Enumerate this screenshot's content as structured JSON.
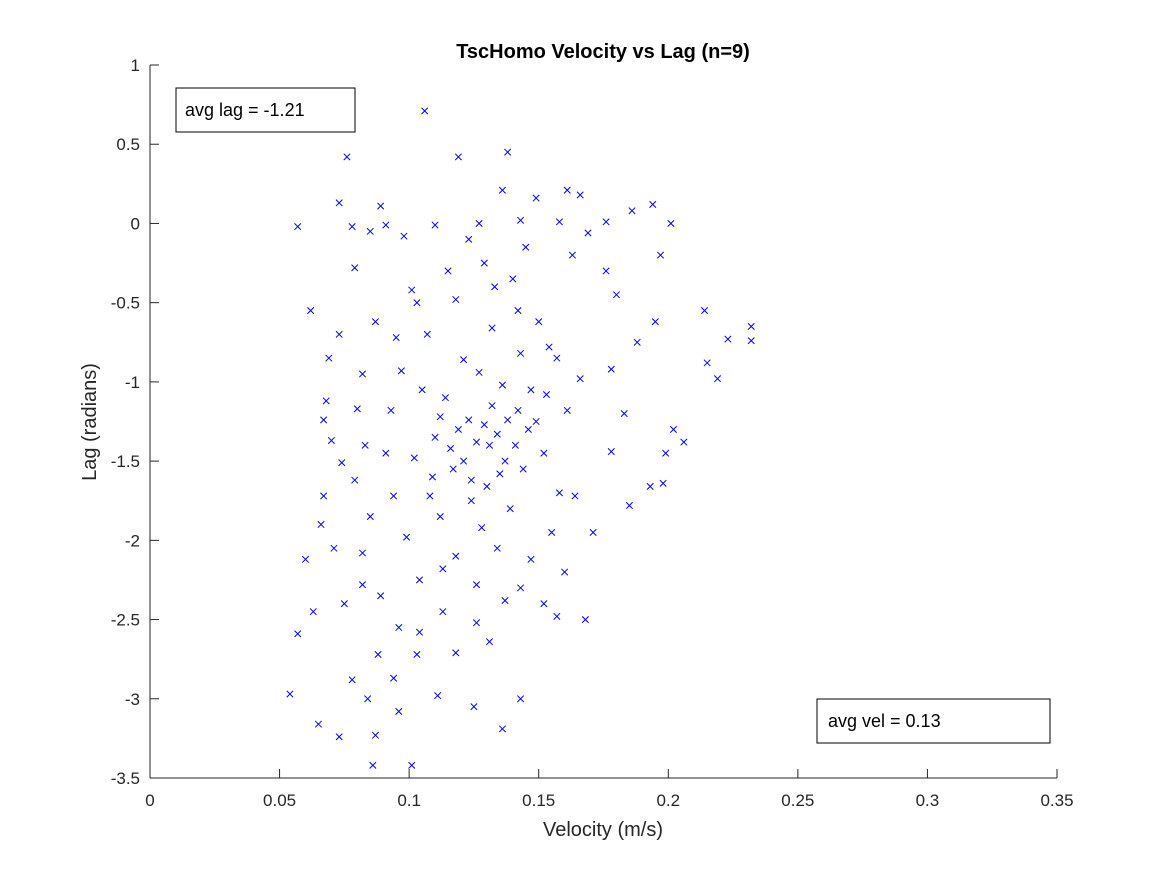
{
  "chart_data": {
    "type": "scatter",
    "title": "TscHomo Velocity vs Lag (n=9)",
    "xlabel": "Velocity (m/s)",
    "ylabel": "Lag (radians)",
    "xlim": [
      0,
      0.35
    ],
    "ylim": [
      -3.5,
      1
    ],
    "xticks": [
      "0",
      "0.05",
      "0.1",
      "0.15",
      "0.2",
      "0.25",
      "0.3",
      "0.35"
    ],
    "yticks": [
      "1",
      "0.5",
      "0",
      "-0.5",
      "-1",
      "-1.5",
      "-2",
      "-2.5",
      "-3",
      "-3.5"
    ],
    "grid": false,
    "marker": "x",
    "marker_color": "#0000ff",
    "annotations": [
      {
        "text": "avg lag = -1.21",
        "placement": "top-left"
      },
      {
        "text": "avg vel = 0.13",
        "placement": "bottom-right"
      }
    ],
    "series": [
      {
        "points": [
          [
            0.106,
            0.71
          ],
          [
            0.076,
            0.42
          ],
          [
            0.119,
            0.42
          ],
          [
            0.138,
            0.45
          ],
          [
            0.136,
            0.21
          ],
          [
            0.161,
            0.21
          ],
          [
            0.166,
            0.18
          ],
          [
            0.149,
            0.16
          ],
          [
            0.073,
            0.13
          ],
          [
            0.089,
            0.11
          ],
          [
            0.194,
            0.12
          ],
          [
            0.186,
            0.08
          ],
          [
            0.057,
            -0.02
          ],
          [
            0.078,
            -0.02
          ],
          [
            0.091,
            -0.01
          ],
          [
            0.11,
            -0.01
          ],
          [
            0.127,
            0.0
          ],
          [
            0.143,
            0.02
          ],
          [
            0.158,
            0.01
          ],
          [
            0.176,
            0.01
          ],
          [
            0.201,
            0.0
          ],
          [
            0.169,
            -0.06
          ],
          [
            0.197,
            -0.2
          ],
          [
            0.062,
            -0.55
          ],
          [
            0.101,
            -0.42
          ],
          [
            0.214,
            -0.55
          ],
          [
            0.223,
            -0.73
          ],
          [
            0.232,
            -0.65
          ],
          [
            0.232,
            -0.74
          ],
          [
            0.215,
            -0.88
          ],
          [
            0.219,
            -0.98
          ],
          [
            0.202,
            -1.3
          ],
          [
            0.206,
            -1.38
          ],
          [
            0.199,
            -1.45
          ],
          [
            0.198,
            -1.64
          ],
          [
            0.193,
            -1.66
          ],
          [
            0.185,
            -1.78
          ],
          [
            0.069,
            -0.85
          ],
          [
            0.073,
            -0.7
          ],
          [
            0.068,
            -1.12
          ],
          [
            0.067,
            -1.24
          ],
          [
            0.07,
            -1.37
          ],
          [
            0.074,
            -1.51
          ],
          [
            0.067,
            -1.72
          ],
          [
            0.066,
            -1.9
          ],
          [
            0.071,
            -2.05
          ],
          [
            0.06,
            -2.12
          ],
          [
            0.063,
            -2.45
          ],
          [
            0.057,
            -2.59
          ],
          [
            0.054,
            -2.97
          ],
          [
            0.065,
            -3.16
          ],
          [
            0.073,
            -3.24
          ],
          [
            0.084,
            -3.0
          ],
          [
            0.086,
            -3.42
          ],
          [
            0.087,
            -3.23
          ],
          [
            0.101,
            -3.42
          ],
          [
            0.136,
            -3.19
          ],
          [
            0.143,
            -3.0
          ],
          [
            0.125,
            -3.05
          ],
          [
            0.111,
            -2.98
          ],
          [
            0.096,
            -3.08
          ],
          [
            0.168,
            -2.5
          ],
          [
            0.157,
            -2.48
          ],
          [
            0.16,
            -2.2
          ],
          [
            0.152,
            -2.4
          ],
          [
            0.088,
            -2.72
          ],
          [
            0.094,
            -2.87
          ],
          [
            0.078,
            -2.88
          ],
          [
            0.118,
            -2.71
          ],
          [
            0.131,
            -2.64
          ],
          [
            0.104,
            -2.58
          ],
          [
            0.075,
            -2.4
          ],
          [
            0.082,
            -2.28
          ],
          [
            0.113,
            -2.18
          ],
          [
            0.143,
            -2.3
          ],
          [
            0.171,
            -1.95
          ],
          [
            0.164,
            -1.72
          ],
          [
            0.178,
            -1.44
          ],
          [
            0.183,
            -1.2
          ],
          [
            0.178,
            -0.92
          ],
          [
            0.188,
            -0.75
          ],
          [
            0.195,
            -0.62
          ],
          [
            0.18,
            -0.45
          ],
          [
            0.176,
            -0.3
          ],
          [
            0.163,
            -0.2
          ],
          [
            0.145,
            -0.15
          ],
          [
            0.123,
            -0.1
          ],
          [
            0.098,
            -0.08
          ],
          [
            0.085,
            -0.05
          ],
          [
            0.079,
            -0.28
          ],
          [
            0.087,
            -0.62
          ],
          [
            0.082,
            -0.95
          ],
          [
            0.08,
            -1.17
          ],
          [
            0.083,
            -1.4
          ],
          [
            0.079,
            -1.62
          ],
          [
            0.085,
            -1.85
          ],
          [
            0.082,
            -2.08
          ],
          [
            0.089,
            -2.35
          ],
          [
            0.096,
            -2.55
          ],
          [
            0.103,
            -2.72
          ],
          [
            0.126,
            -2.52
          ],
          [
            0.137,
            -2.38
          ],
          [
            0.147,
            -2.12
          ],
          [
            0.155,
            -1.95
          ],
          [
            0.158,
            -1.7
          ],
          [
            0.152,
            -1.45
          ],
          [
            0.161,
            -1.18
          ],
          [
            0.166,
            -0.98
          ],
          [
            0.154,
            -0.78
          ],
          [
            0.142,
            -0.55
          ],
          [
            0.133,
            -0.4
          ],
          [
            0.118,
            -0.48
          ],
          [
            0.107,
            -0.7
          ],
          [
            0.097,
            -0.93
          ],
          [
            0.093,
            -1.18
          ],
          [
            0.091,
            -1.45
          ],
          [
            0.094,
            -1.72
          ],
          [
            0.099,
            -1.98
          ],
          [
            0.104,
            -2.25
          ],
          [
            0.113,
            -2.45
          ],
          [
            0.126,
            -2.28
          ],
          [
            0.134,
            -2.05
          ],
          [
            0.139,
            -1.8
          ],
          [
            0.144,
            -1.55
          ],
          [
            0.146,
            -1.3
          ],
          [
            0.147,
            -1.05
          ],
          [
            0.143,
            -0.82
          ],
          [
            0.132,
            -0.66
          ],
          [
            0.121,
            -0.86
          ],
          [
            0.114,
            -1.1
          ],
          [
            0.11,
            -1.35
          ],
          [
            0.109,
            -1.6
          ],
          [
            0.112,
            -1.85
          ],
          [
            0.118,
            -2.1
          ],
          [
            0.128,
            -1.92
          ],
          [
            0.13,
            -1.66
          ],
          [
            0.131,
            -1.4
          ],
          [
            0.132,
            -1.15
          ],
          [
            0.127,
            -0.94
          ],
          [
            0.123,
            -1.24
          ],
          [
            0.121,
            -1.5
          ],
          [
            0.124,
            -1.75
          ],
          [
            0.137,
            -1.5
          ],
          [
            0.138,
            -1.24
          ],
          [
            0.116,
            -1.42
          ],
          [
            0.119,
            -1.3
          ],
          [
            0.126,
            -1.38
          ],
          [
            0.129,
            -1.27
          ],
          [
            0.134,
            -1.33
          ],
          [
            0.141,
            -1.4
          ],
          [
            0.117,
            -1.55
          ],
          [
            0.124,
            -1.62
          ],
          [
            0.135,
            -1.58
          ],
          [
            0.142,
            -1.18
          ],
          [
            0.136,
            -1.02
          ],
          [
            0.112,
            -1.22
          ],
          [
            0.105,
            -1.05
          ],
          [
            0.102,
            -1.48
          ],
          [
            0.108,
            -1.72
          ],
          [
            0.149,
            -1.25
          ],
          [
            0.153,
            -1.08
          ],
          [
            0.157,
            -0.85
          ],
          [
            0.15,
            -0.62
          ],
          [
            0.14,
            -0.35
          ],
          [
            0.129,
            -0.25
          ],
          [
            0.115,
            -0.3
          ],
          [
            0.103,
            -0.5
          ],
          [
            0.095,
            -0.72
          ]
        ]
      }
    ]
  }
}
